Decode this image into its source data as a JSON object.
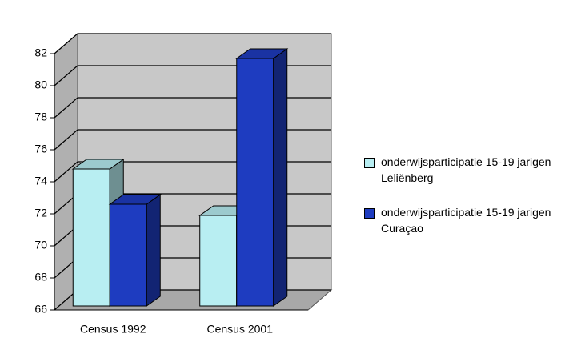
{
  "chart_data": {
    "type": "bar3d",
    "categories": [
      "Census 1992",
      "Census 2001"
    ],
    "series": [
      {
        "name": "onderwijsparticipatie 15-19 jarigen Leliënberg",
        "color": "#b8eef2",
        "values": [
          74.8,
          71.9
        ]
      },
      {
        "name": "onderwijsparticipatie 15-19 jarigen Curaçao",
        "color": "#1e3cc0",
        "values": [
          72.6,
          81.7
        ]
      }
    ],
    "ylim": [
      66,
      82
    ],
    "yticks": [
      66,
      68,
      70,
      72,
      74,
      76,
      78,
      80,
      82
    ],
    "grid": true,
    "legend": "right"
  }
}
